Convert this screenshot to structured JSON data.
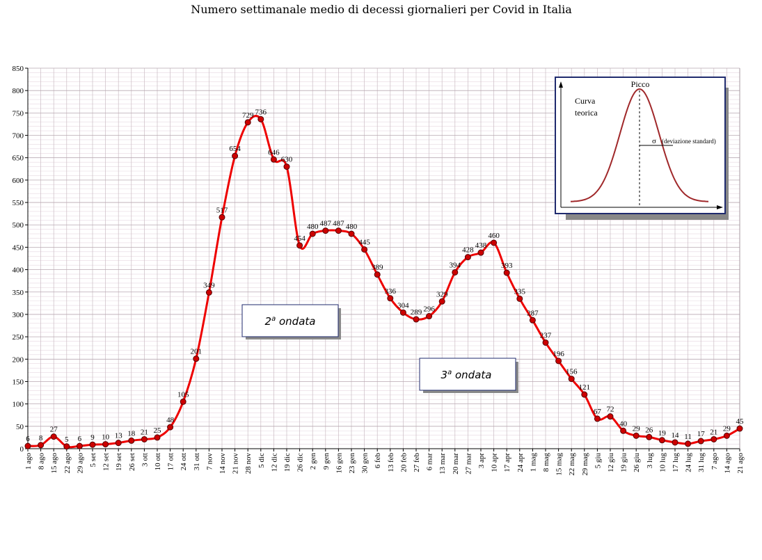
{
  "chart_data": {
    "type": "line",
    "title": "Numero settimanale medio di decessi giornalieri per Covid in Italia",
    "ylim": [
      0,
      850
    ],
    "yticks": [
      0,
      50,
      100,
      150,
      200,
      250,
      300,
      350,
      400,
      450,
      500,
      550,
      600,
      650,
      700,
      750,
      800,
      850
    ],
    "grid": true,
    "categories": [
      "1 ago",
      "8 ago",
      "15 ago",
      "22 ago",
      "29 ago",
      "5 set",
      "12 set",
      "19 set",
      "26 set",
      "3 ott",
      "10 ott",
      "17 ott",
      "24 ott",
      "31 ott",
      "7 nov",
      "14 nov",
      "21 nov",
      "28 nov",
      "5 dic",
      "12 dic",
      "19 dic",
      "26 dic",
      "2 gen",
      "9 gen",
      "16 gen",
      "23 gen",
      "30 gen",
      "6 feb",
      "13 feb",
      "20 feb",
      "27 feb",
      "6 mar",
      "13 mar",
      "20 mar",
      "27 mar",
      "3 apr",
      "10 apr",
      "17 apr",
      "24 apr",
      "1 mag",
      "8 mag",
      "15 mag",
      "22 mag",
      "29 mag",
      "5 giu",
      "12 giu",
      "19 giu",
      "26 giu",
      "3 lug",
      "10 lug",
      "17 lug",
      "24 lug",
      "31 lug",
      "7 ago",
      "14 ago",
      "21 ago"
    ],
    "series": [
      {
        "values": [
          6,
          8,
          27,
          5,
          6,
          9,
          10,
          13,
          18,
          21,
          25,
          48,
          105,
          201,
          349,
          517,
          654,
          729,
          736,
          646,
          630,
          454,
          480,
          487,
          487,
          480,
          445,
          389,
          336,
          304,
          289,
          296,
          329,
          394,
          428,
          438,
          460,
          393,
          335,
          287,
          237,
          196,
          156,
          121,
          67,
          72,
          40,
          29,
          26,
          19,
          14,
          11,
          17,
          21,
          29,
          45
        ],
        "color": "#ee0000",
        "marker_color": "#cc0000"
      }
    ],
    "annotations": [
      {
        "text_main": "2",
        "text_sup": "a",
        "text_rest": " ondata",
        "near_category": "19 dic",
        "near_value": 275
      },
      {
        "text_main": "3",
        "text_sup": "a",
        "text_rest": " ondata",
        "near_category": "27 mar",
        "near_value": 165
      }
    ],
    "inset": {
      "peak_label": "Picco",
      "curve_label_line1": "Curva",
      "curve_label_line2": "teorica",
      "sigma_symbol": "σ",
      "sigma_label": "(deviazione standard)",
      "curve_color": "#a0282a",
      "peak_color": "#8b1a1a",
      "border_color": "#1f2a6e"
    }
  }
}
